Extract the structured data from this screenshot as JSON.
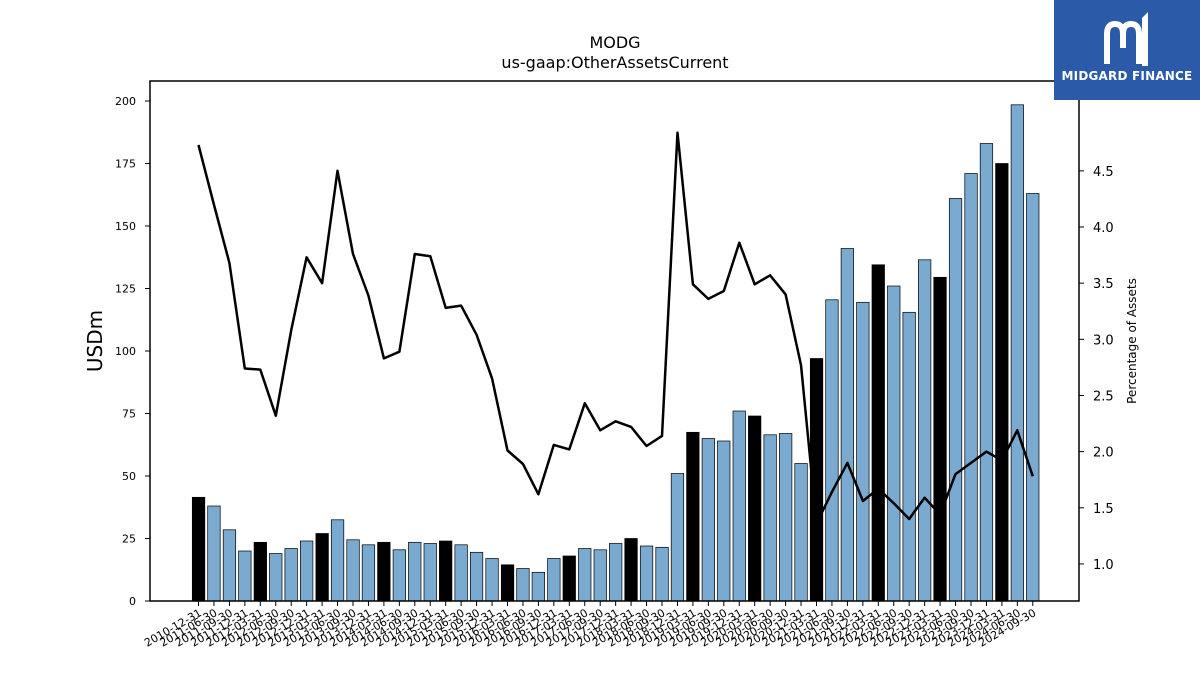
{
  "chart_data": {
    "type": "bar",
    "title": "MODG",
    "subtitle": "us-gaap:OtherAssetsCurrent",
    "ylabel": "USDm",
    "y2label": "Percentage of Assets",
    "ylim": [
      0,
      208
    ],
    "y2lim": [
      0.67,
      5.3
    ],
    "yticks": [
      0,
      25,
      50,
      75,
      100,
      125,
      150,
      175,
      200
    ],
    "y2ticks": [
      "1.0",
      "1.5",
      "2.0",
      "2.5",
      "3.0",
      "3.5",
      "4.0",
      "4.5"
    ],
    "categories": [
      "2010-12-31",
      "2011-06-30",
      "2011-09-30",
      "2011-12-31",
      "2012-03-31",
      "2012-06-30",
      "2012-09-30",
      "2012-12-31",
      "2013-03-31",
      "2013-06-30",
      "2013-09-30",
      "2013-12-31",
      "2014-03-31",
      "2014-06-30",
      "2014-09-30",
      "2014-12-31",
      "2015-03-31",
      "2015-06-30",
      "2015-09-30",
      "2015-12-31",
      "2016-03-31",
      "2016-06-30",
      "2016-09-30",
      "2016-12-31",
      "2017-03-31",
      "2017-06-30",
      "2017-09-30",
      "2017-12-31",
      "2018-03-31",
      "2018-06-30",
      "2018-09-30",
      "2018-12-31",
      "2019-03-31",
      "2019-06-30",
      "2019-09-30",
      "2019-12-31",
      "2020-03-31",
      "2020-06-30",
      "2020-09-30",
      "2020-12-31",
      "2021-03-31",
      "2021-06-30",
      "2021-09-30",
      "2021-12-31",
      "2022-03-31",
      "2022-06-30",
      "2022-09-30",
      "2022-12-31",
      "2023-03-31",
      "2023-06-30",
      "2023-09-30",
      "2023-12-31",
      "2024-03-31",
      "2024-06-30",
      "2024-09-30"
    ],
    "series": [
      {
        "type": "bar",
        "values": [
          41.5,
          38,
          28.5,
          20,
          23.5,
          19,
          21,
          24,
          27,
          32.5,
          24.5,
          22.5,
          23.5,
          20.5,
          23.5,
          23,
          24,
          22.5,
          19.5,
          17,
          14.5,
          13,
          11.5,
          17,
          18,
          21,
          20.5,
          23,
          25,
          22,
          21.5,
          51,
          67.5,
          65,
          64,
          76,
          74,
          66.5,
          67,
          55,
          97,
          120.5,
          141,
          119.5,
          134.5,
          126,
          115.5,
          136.5,
          129.5,
          161,
          171,
          183,
          175,
          198.5,
          163
        ],
        "highlight_color": "#000000",
        "color": "#7aaad0"
      },
      {
        "type": "line",
        "values": [
          4.73,
          4.2,
          3.68,
          2.74,
          2.73,
          2.32,
          3.08,
          3.73,
          3.5,
          4.5,
          3.76,
          3.39,
          2.83,
          2.89,
          3.76,
          3.74,
          3.28,
          3.3,
          3.04,
          2.65,
          2.01,
          1.89,
          1.62,
          2.06,
          2.02,
          2.43,
          2.19,
          2.27,
          2.22,
          2.05,
          2.14,
          4.84,
          3.49,
          3.36,
          3.43,
          3.86,
          3.49,
          3.57,
          3.4,
          2.77,
          1.36,
          1.64,
          1.9,
          1.56,
          1.67,
          1.54,
          1.4,
          1.59,
          1.44,
          1.8,
          1.9,
          2.0,
          1.92,
          2.19,
          1.78
        ],
        "color": "#000000"
      }
    ],
    "grid": false
  },
  "logo": {
    "text": "MIDGARD FINANCE",
    "color": "#2b5aa8"
  }
}
